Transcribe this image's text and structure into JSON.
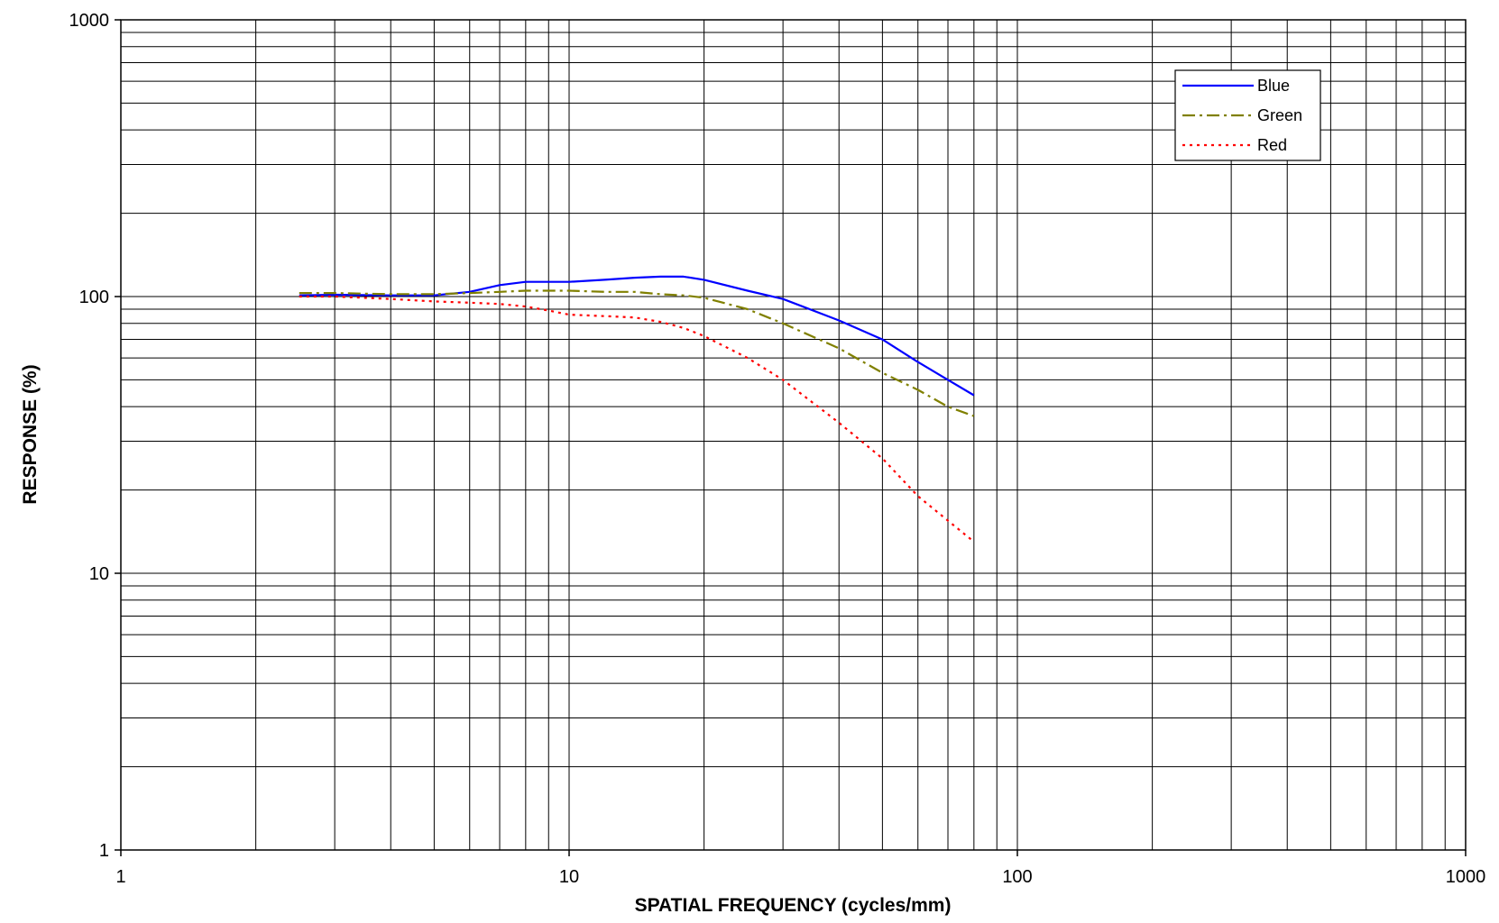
{
  "chart_data": {
    "type": "line",
    "title": "",
    "xlabel": "SPATIAL FREQUENCY (cycles/mm)",
    "ylabel": "RESPONSE (%)",
    "xscale": "log",
    "yscale": "log",
    "xlim": [
      1,
      1000
    ],
    "ylim": [
      1,
      1000
    ],
    "x_ticks": [
      "1",
      "10",
      "100",
      "1000"
    ],
    "y_ticks": [
      "1",
      "10",
      "100",
      "1000"
    ],
    "grid": true,
    "legend_position": "top-right",
    "series": [
      {
        "name": "Blue",
        "color": "#0000ff",
        "dash": "solid",
        "x": [
          2.5,
          3,
          4,
          5,
          6,
          7,
          8,
          9,
          10,
          12,
          14,
          16,
          18,
          20,
          25,
          30,
          40,
          50,
          60,
          70,
          80
        ],
        "y": [
          101,
          101.5,
          101,
          101,
          104,
          110,
          113,
          113,
          113,
          115,
          117,
          118,
          118,
          115,
          105,
          98,
          82,
          70,
          58,
          50,
          44
        ]
      },
      {
        "name": "Green",
        "color": "#808000",
        "dash": "dashdot",
        "x": [
          2.5,
          3,
          4,
          5,
          6,
          7,
          8,
          9,
          10,
          12,
          14,
          16,
          18,
          20,
          25,
          30,
          40,
          50,
          60,
          70,
          80
        ],
        "y": [
          103,
          103,
          102,
          102,
          103,
          104,
          105,
          105,
          105,
          104,
          104,
          102,
          101,
          99,
          90,
          80,
          65,
          53,
          46,
          40,
          37
        ]
      },
      {
        "name": "Red",
        "color": "#ff0000",
        "dash": "dotted",
        "x": [
          2.5,
          3,
          4,
          5,
          6,
          7,
          8,
          9,
          10,
          12,
          14,
          16,
          18,
          20,
          25,
          30,
          40,
          50,
          60,
          70,
          80
        ],
        "y": [
          100,
          100,
          98,
          96,
          95,
          94,
          92,
          89,
          86,
          85,
          84,
          81,
          77,
          72,
          60,
          50,
          35,
          26,
          19,
          15.5,
          13
        ]
      }
    ]
  }
}
